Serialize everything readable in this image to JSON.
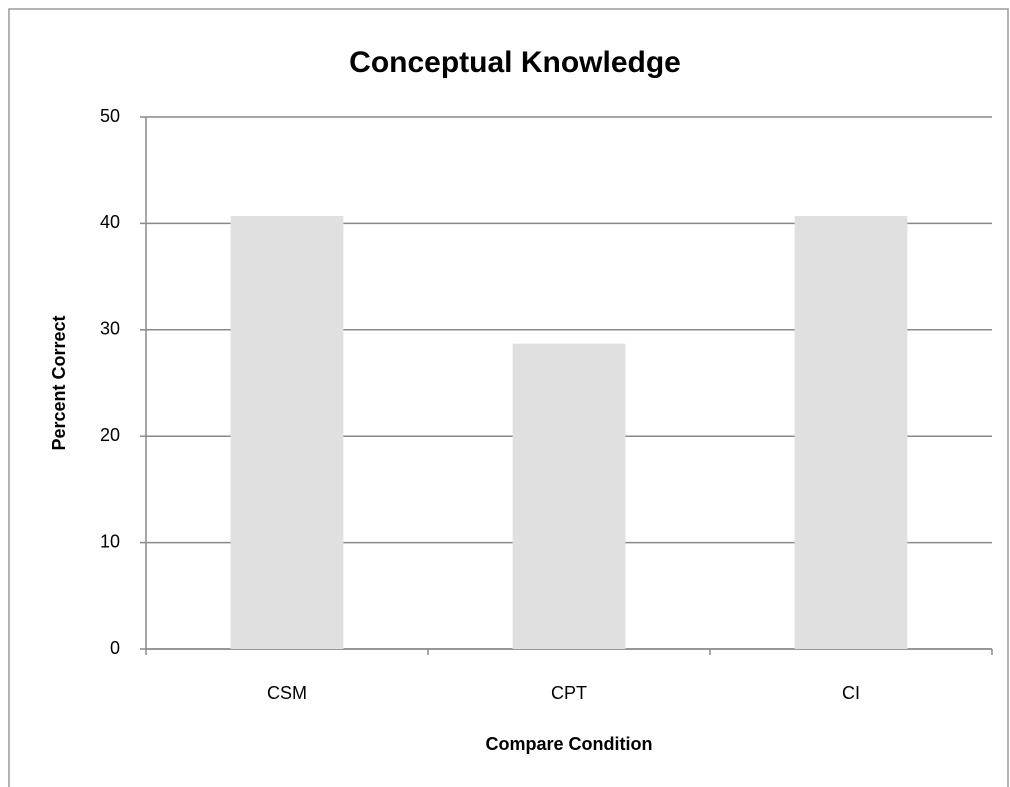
{
  "chart_data": {
    "type": "bar",
    "title": "Conceptual Knowledge",
    "x_label": "Compare Condition",
    "y_label": "Percent Correct",
    "categories": [
      "CSM",
      "CPT",
      "CI"
    ],
    "values": [
      40.7,
      28.7,
      40.7
    ],
    "color": "#e0e0e0",
    "ylim": [
      0,
      50
    ],
    "yticks": [
      0,
      10,
      20,
      30,
      40,
      50
    ],
    "grid": true
  }
}
